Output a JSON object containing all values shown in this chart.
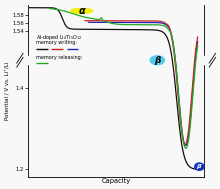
{
  "ylabel": "Potential / V vs. Li⁺/Li",
  "xlabel": "Capacity",
  "ylim": [
    1.18,
    1.605
  ],
  "background_color": "#f8f8f8",
  "alpha_label": "α",
  "beta_label": "β",
  "betaprime_label": "β′",
  "alpha_circle_color": "#f0f000",
  "beta_circle_color": "#55ccee",
  "betaprime_circle_color": "#1133bb",
  "colors": {
    "black": "#111111",
    "red": "#cc2222",
    "blue": "#2222bb",
    "green": "#22aa22"
  },
  "yticks": [
    1.2,
    1.4,
    1.54,
    1.56,
    1.58
  ],
  "legend_text1": "Al-doped Li₄Ti₅O₁₂",
  "legend_text2": "memory writing:",
  "legend_text3": "memory releasing:"
}
